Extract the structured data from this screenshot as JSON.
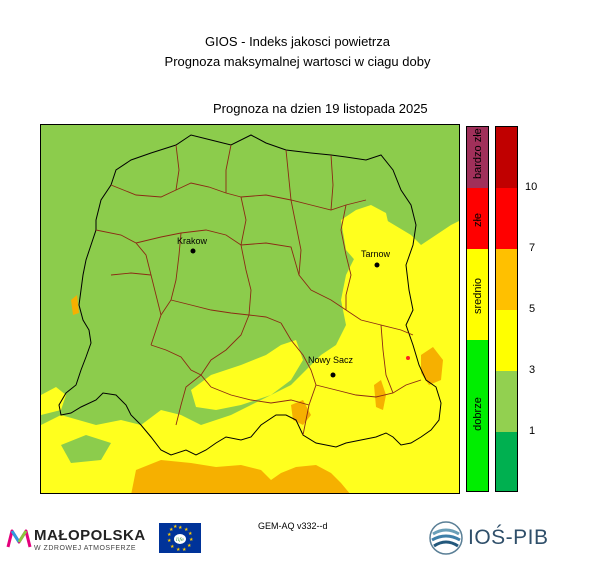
{
  "title_line1": "GIOS - Indeks jakosci powietrza",
  "title_line2": "Prognoza maksymalnej wartosci w ciagu doby",
  "date_line": "Prognoza na dzien  19 listopada 2025",
  "cities": [
    {
      "name": "Krakow"
    },
    {
      "name": "Tarnow"
    },
    {
      "name": "Nowy Sacz"
    }
  ],
  "categories": [
    {
      "label": "bardzo złe",
      "color": "#a0305a"
    },
    {
      "label": "złe",
      "color": "#ff0000"
    },
    {
      "label": "srednio",
      "color": "#ffff00"
    },
    {
      "label": "dobrze",
      "color": "#00ee00"
    }
  ],
  "scale": [
    {
      "value": "10",
      "color": "#c00000"
    },
    {
      "value": "7",
      "color": "#ff0000"
    },
    {
      "value": "5",
      "color": "#ffc000"
    },
    {
      "value": "3",
      "color": "#ffff00"
    },
    {
      "value": "1",
      "color": "#92d050"
    },
    {
      "value": "",
      "color": "#00b050"
    }
  ],
  "map_colors": {
    "good": "#8ccc4c",
    "moderate": "#ffff1e",
    "orange": "#f6b000",
    "red": "#ff2020",
    "border_region": "#000000",
    "border_county": "#8b2a14"
  },
  "model_note": "GEM-AQ v332--d",
  "logos": {
    "malopolska_name": "MAŁOPOLSKA",
    "malopolska_slogan": "W ZDROWEJ ATMOSFERZE",
    "ios_name": "IOŚ-PIB",
    "eu_program": "life"
  }
}
